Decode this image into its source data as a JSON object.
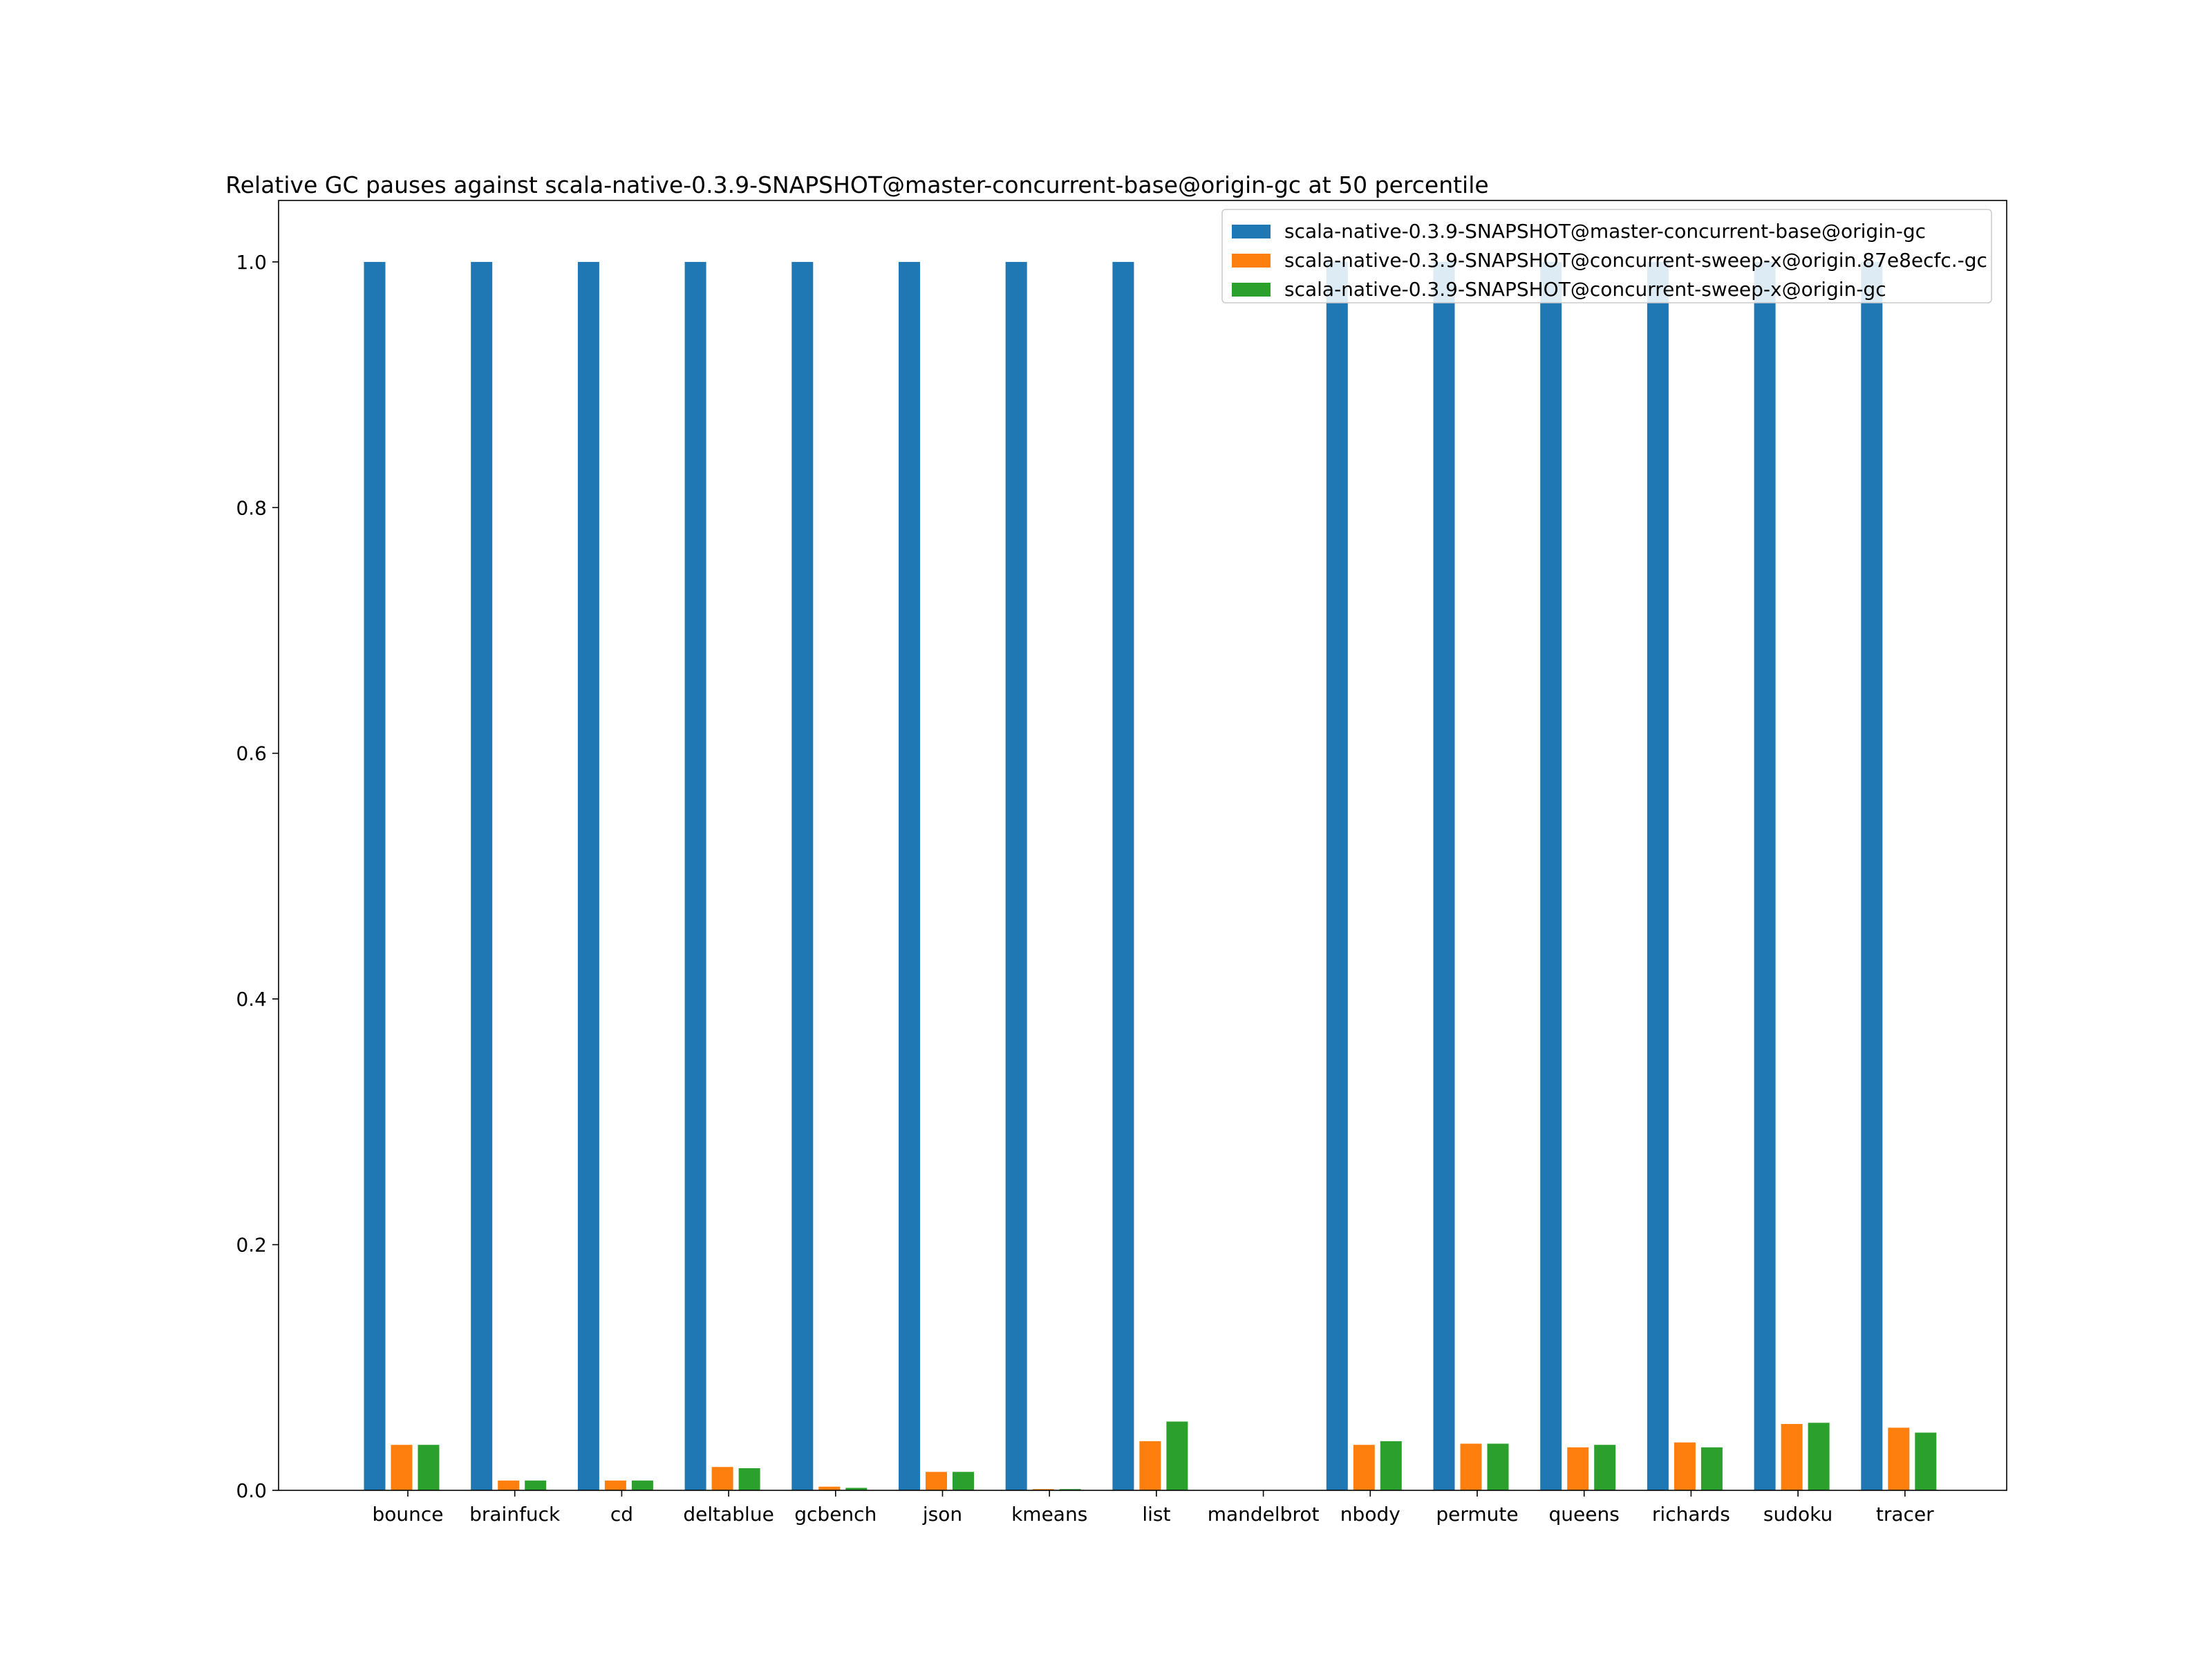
{
  "chart_data": {
    "type": "bar",
    "title": "Relative GC pauses against scala-native-0.3.9-SNAPSHOT@master-concurrent-base@origin-gc at 50 percentile",
    "xlabel": "",
    "ylabel": "",
    "ylim": [
      0,
      1.05
    ],
    "yticks": [
      "0.0",
      "0.2",
      "0.4",
      "0.6",
      "0.8",
      "1.0"
    ],
    "grid": false,
    "legend_position": "top-right",
    "categories": [
      "bounce",
      "brainfuck",
      "cd",
      "deltablue",
      "gcbench",
      "json",
      "kmeans",
      "list",
      "mandelbrot",
      "nbody",
      "permute",
      "queens",
      "richards",
      "sudoku",
      "tracer"
    ],
    "series": [
      {
        "name": "scala-native-0.3.9-SNAPSHOT@master-concurrent-base@origin-gc",
        "color": "#1f77b4",
        "values": [
          1.0,
          1.0,
          1.0,
          1.0,
          1.0,
          1.0,
          1.0,
          1.0,
          0.0,
          1.0,
          1.0,
          1.0,
          1.0,
          1.0,
          1.0
        ]
      },
      {
        "name": "scala-native-0.3.9-SNAPSHOT@concurrent-sweep-x@origin.87e8ecfc.-gc",
        "color": "#ff7f0e",
        "values": [
          0.037,
          0.008,
          0.008,
          0.019,
          0.003,
          0.015,
          0.001,
          0.04,
          0.0,
          0.037,
          0.038,
          0.035,
          0.039,
          0.054,
          0.051
        ]
      },
      {
        "name": "scala-native-0.3.9-SNAPSHOT@concurrent-sweep-x@origin-gc",
        "color": "#2ca02c",
        "values": [
          0.037,
          0.008,
          0.008,
          0.018,
          0.002,
          0.015,
          0.001,
          0.056,
          0.0,
          0.04,
          0.038,
          0.037,
          0.035,
          0.055,
          0.047
        ]
      }
    ]
  }
}
